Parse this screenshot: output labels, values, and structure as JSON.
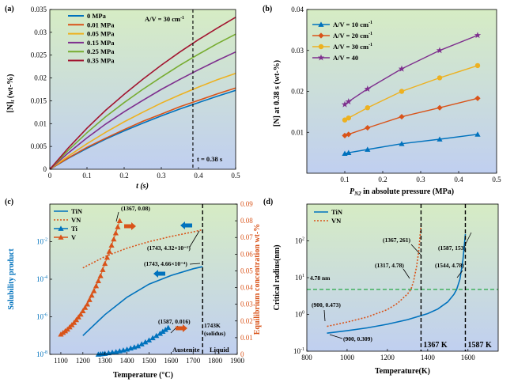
{
  "colors": {
    "bg_green": "#d6e9c6",
    "bg_blue": "#c4d3ef",
    "blue": "#0072bd",
    "orange": "#d95319",
    "yellow": "#edb120",
    "purple": "#7e2f8e",
    "green": "#77ac30",
    "darkred": "#a2142f",
    "dashed_green": "#28a745"
  },
  "chart_data": [
    {
      "panel": "(a)",
      "type": "line",
      "xlabel": "t (s)",
      "ylabel": "[N]t (wt-%)",
      "ylabel_main": "[N]",
      "ylabel_sub": "t",
      "ylabel_tail": " (wt-%)",
      "xlim": [
        0,
        0.5
      ],
      "ylim": [
        0,
        0.035
      ],
      "x_ticks": [
        0,
        0.1,
        0.2,
        0.3,
        0.4,
        0.5
      ],
      "x_tick_labels": [
        "0",
        "0.1",
        "0.2",
        "0.3",
        "0.4",
        "0.5"
      ],
      "y_ticks": [
        0,
        0.005,
        0.01,
        0.015,
        0.02,
        0.025,
        0.03,
        0.035
      ],
      "y_tick_labels": [
        "0",
        "0.005",
        "0.01",
        "0.015",
        "0.02",
        "0.025",
        "0.03",
        "0.035"
      ],
      "annotation": "A/V = 30 cm",
      "annotation_sup": "-1",
      "vline_x": 0.385,
      "vline_label": "t = 0.38 s",
      "x": [
        0,
        0.05,
        0.1,
        0.15,
        0.2,
        0.25,
        0.3,
        0.35,
        0.4,
        0.45,
        0.5
      ],
      "series": [
        {
          "name": "0 MPa",
          "color": "#0072bd",
          "values": [
            0,
            0.0024,
            0.0046,
            0.0066,
            0.0084,
            0.0101,
            0.0117,
            0.0132,
            0.0146,
            0.016,
            0.0173
          ]
        },
        {
          "name": "0.01 MPa",
          "color": "#d95319",
          "values": [
            0,
            0.0025,
            0.0048,
            0.0068,
            0.0087,
            0.0105,
            0.0121,
            0.0137,
            0.0151,
            0.0165,
            0.0178
          ]
        },
        {
          "name": "0.05 MPa",
          "color": "#edb120",
          "values": [
            0,
            0.0029,
            0.0056,
            0.0081,
            0.0104,
            0.0125,
            0.0145,
            0.0163,
            0.018,
            0.0196,
            0.021
          ]
        },
        {
          "name": "0.15 MPa",
          "color": "#7e2f8e",
          "values": [
            0,
            0.0036,
            0.0069,
            0.0099,
            0.0126,
            0.0151,
            0.0175,
            0.0197,
            0.0218,
            0.0238,
            0.0257
          ]
        },
        {
          "name": "0.25 MPa",
          "color": "#77ac30",
          "values": [
            0,
            0.0042,
            0.008,
            0.0115,
            0.0146,
            0.0175,
            0.0202,
            0.0228,
            0.0252,
            0.0275,
            0.0296
          ]
        },
        {
          "name": "0.35 MPa",
          "color": "#a2142f",
          "values": [
            0,
            0.0047,
            0.009,
            0.0129,
            0.0164,
            0.0197,
            0.0228,
            0.0257,
            0.0284,
            0.0309,
            0.0333
          ]
        }
      ]
    },
    {
      "panel": "(b)",
      "type": "line",
      "xlabel": "P",
      "xlabel_sub": "N2",
      "xlabel_tail": " in absolute pressure (MPa)",
      "ylabel": "[N]  at 0.38 s (wt-%)",
      "xlim": [
        0,
        0.5
      ],
      "ylim": [
        0,
        0.04
      ],
      "x_ticks": [
        0.1,
        0.2,
        0.3,
        0.4,
        0.5
      ],
      "x_tick_labels": [
        "0.1",
        "0.2",
        "0.3",
        "0.4",
        "0.5"
      ],
      "y_ticks": [
        0.01,
        0.02,
        0.03,
        0.04
      ],
      "y_tick_labels": [
        "0.01",
        "0.02",
        "0.03",
        "0.04"
      ],
      "x": [
        0.1,
        0.11,
        0.16,
        0.25,
        0.35,
        0.45
      ],
      "series": [
        {
          "name": "A/V = 10 cm",
          "sup": "-1",
          "color": "#0072bd",
          "marker": "triangle",
          "values": [
            0.0048,
            0.005,
            0.0058,
            0.0072,
            0.0083,
            0.0095
          ]
        },
        {
          "name": "A/V = 20 cm",
          "sup": "-1",
          "color": "#d95319",
          "marker": "diamond",
          "values": [
            0.0092,
            0.0095,
            0.0111,
            0.0138,
            0.016,
            0.0183
          ]
        },
        {
          "name": "A/V = 30 cm",
          "sup": "-1",
          "color": "#edb120",
          "marker": "circle",
          "values": [
            0.013,
            0.0135,
            0.016,
            0.02,
            0.0233,
            0.0263
          ]
        },
        {
          "name": "A/V = 40",
          "sup": "",
          "color": "#7e2f8e",
          "marker": "star",
          "values": [
            0.0168,
            0.0175,
            0.0206,
            0.0255,
            0.03,
            0.0337
          ]
        }
      ]
    },
    {
      "panel": "(c)",
      "type": "line",
      "xlabel": "Temperature (°C)",
      "ylabel_left": "Solubility product",
      "ylabel_right": "Equilibrium concentration wt-%",
      "xlim": [
        1050,
        1900
      ],
      "ylim_left_log": [
        1e-08,
        1
      ],
      "ylim_right": [
        0,
        0.09
      ],
      "x_ticks": [
        1100,
        1200,
        1300,
        1400,
        1500,
        1600,
        1700,
        1800,
        1900
      ],
      "x_tick_labels": [
        "1100",
        "1200",
        "1300",
        "1400",
        "1500",
        "1600",
        "1700",
        "1800",
        "1900"
      ],
      "y_left_ticks": [
        1e-08,
        1e-06,
        0.0001,
        0.01
      ],
      "y_left_tick_base": [
        "10",
        "10",
        "10",
        "10"
      ],
      "y_left_tick_exp": [
        "-8",
        "-6",
        "-4",
        "-2"
      ],
      "y_right_ticks": [
        0,
        0.01,
        0.02,
        0.03,
        0.04,
        0.05,
        0.06,
        0.07,
        0.08,
        0.09
      ],
      "y_right_tick_labels": [
        "0",
        "0.01",
        "0.02",
        "0.03",
        "0.04",
        "0.05",
        "0.06",
        "0.07",
        "0.08",
        "0.09"
      ],
      "vline_x": 1743,
      "vline_label_1": "1743K",
      "vline_label_2": "(solidus)",
      "region_left": "Austenite",
      "region_right": "Liquid",
      "annotations": [
        "(1367, 0.08)",
        "(1743, 4.32×10⁻²)",
        "(1743, 4.66×10⁻⁴)",
        "(1587, 0.016)"
      ],
      "series": [
        {
          "name": "TiN",
          "axis": "left-log",
          "color": "#0072bd",
          "style": "solid",
          "x": [
            1200,
            1300,
            1400,
            1500,
            1600,
            1700,
            1743
          ],
          "values": [
            1e-07,
            1.3e-06,
            1.1e-05,
            5.5e-05,
            0.00016,
            0.00036,
            0.000466
          ]
        },
        {
          "name": "VN",
          "axis": "left-log",
          "color": "#d95319",
          "style": "dotted",
          "x": [
            1200,
            1300,
            1400,
            1500,
            1600,
            1700,
            1743
          ],
          "values": [
            0.0004,
            0.0016,
            0.0045,
            0.01,
            0.019,
            0.033,
            0.0432
          ]
        },
        {
          "name": "Ti",
          "axis": "right",
          "color": "#0072bd",
          "style": "marker-triangle",
          "x": [
            1270,
            1300,
            1350,
            1400,
            1450,
            1500,
            1550,
            1587
          ],
          "values": [
            0.0,
            0.0005,
            0.0015,
            0.003,
            0.005,
            0.0085,
            0.0125,
            0.016
          ]
        },
        {
          "name": "V",
          "axis": "right",
          "color": "#d95319",
          "style": "marker-triangle",
          "x": [
            1100,
            1130,
            1160,
            1190,
            1220,
            1250,
            1280,
            1310,
            1340,
            1367
          ],
          "values": [
            0.012,
            0.015,
            0.019,
            0.024,
            0.03,
            0.038,
            0.047,
            0.058,
            0.069,
            0.08
          ]
        }
      ]
    },
    {
      "panel": "(d)",
      "type": "line",
      "xlabel": "Temperature(K)",
      "ylabel": "Critical radius(nm)",
      "xlim": [
        800,
        1750
      ],
      "ylim_log": [
        0.1,
        1000
      ],
      "x_ticks": [
        800,
        1000,
        1200,
        1400,
        1600
      ],
      "x_tick_labels": [
        "800",
        "1000",
        "1200",
        "1400",
        "1600"
      ],
      "y_ticks": [
        0.1,
        1,
        10,
        100
      ],
      "y_tick_base": [
        "10",
        "10",
        "10",
        "10"
      ],
      "y_tick_exp": [
        "-1",
        "0",
        "1",
        "2"
      ],
      "hline_y": 4.78,
      "hline_label": "4.78 nm",
      "vlines": [
        {
          "x": 1367,
          "label": "1367 K"
        },
        {
          "x": 1587,
          "label": "1587 K"
        }
      ],
      "annotations": [
        "(1367, 261)",
        "(1587, 153)",
        "(1317, 4.78)",
        "(1544, 4.78)",
        "(900, 0.473)",
        "(900, 0.309)"
      ],
      "series": [
        {
          "name": "TiN",
          "color": "#0072bd",
          "style": "solid",
          "x": [
            900,
            1000,
            1100,
            1200,
            1300,
            1400,
            1450,
            1500,
            1530,
            1544,
            1560,
            1575,
            1587
          ],
          "values": [
            0.309,
            0.36,
            0.43,
            0.54,
            0.72,
            1.05,
            1.4,
            2.2,
            3.5,
            4.78,
            9,
            30,
            153
          ]
        },
        {
          "name": "VN",
          "color": "#d95319",
          "style": "dotted",
          "x": [
            900,
            1000,
            1100,
            1200,
            1250,
            1300,
            1317,
            1330,
            1345,
            1355,
            1367
          ],
          "values": [
            0.473,
            0.62,
            0.85,
            1.35,
            2.0,
            3.6,
            4.78,
            8,
            20,
            50,
            261
          ]
        }
      ]
    }
  ]
}
